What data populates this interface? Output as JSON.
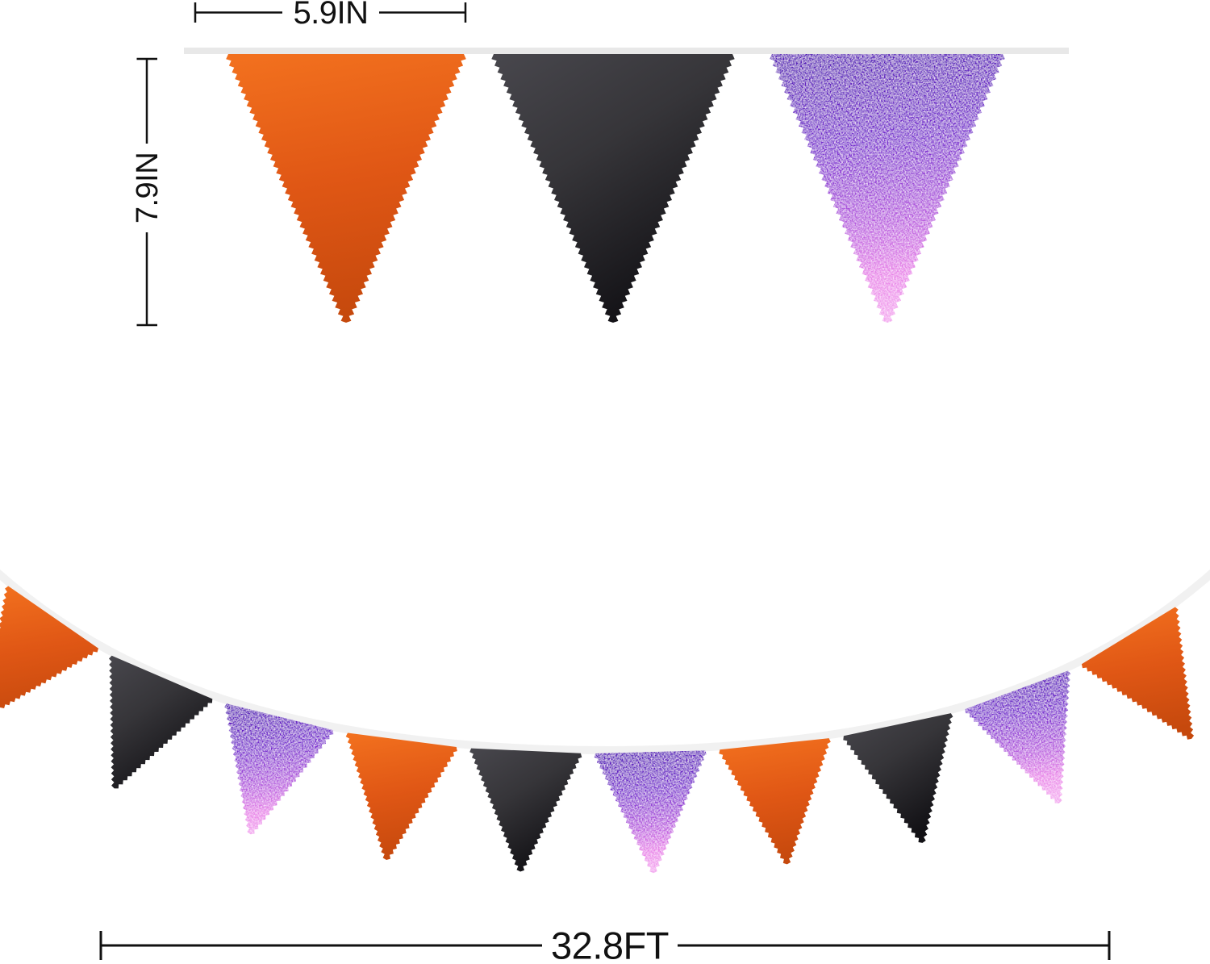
{
  "annotations": {
    "flag_width": "5.9IN",
    "flag_height": "7.9IN",
    "banner_length": "32.8FT"
  },
  "colors": {
    "annotation": "#111111",
    "string_top": "#e8e8e8",
    "string_garland": "#f1f1f1",
    "orange": {
      "stops": [
        [
          "0%",
          "#f2701e"
        ],
        [
          "50%",
          "#e05715"
        ],
        [
          "100%",
          "#c6490d"
        ]
      ]
    },
    "black": {
      "stops": [
        [
          "0%",
          "#48474d"
        ],
        [
          "45%",
          "#363539"
        ],
        [
          "100%",
          "#121115"
        ]
      ]
    },
    "purple": {
      "stops": [
        [
          "0%",
          "#4e0fb6"
        ],
        [
          "35%",
          "#7527cf"
        ],
        [
          "65%",
          "#b556de"
        ],
        [
          "85%",
          "#e883e8"
        ],
        [
          "100%",
          "#f2a4ee"
        ]
      ]
    }
  },
  "pennants": {
    "top_row": [
      "orange",
      "black",
      "purple"
    ],
    "garland": [
      "orange",
      "black",
      "purple",
      "orange",
      "black",
      "purple",
      "orange",
      "black",
      "purple",
      "orange"
    ]
  }
}
